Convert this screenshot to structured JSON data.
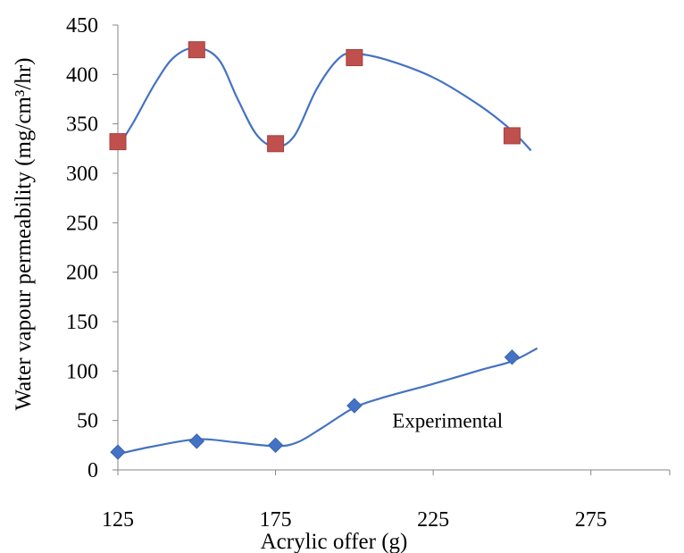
{
  "chart_data": {
    "type": "scatter",
    "title": "",
    "xlabel": "Acrylic offer (g)",
    "ylabel": "Water vapour permeability (mg/cm³/hr)",
    "xlim": [
      125,
      300
    ],
    "ylim": [
      0,
      450
    ],
    "x_ticks": [
      "125",
      "175",
      "225",
      "275"
    ],
    "y_ticks": [
      "0",
      "50",
      "100",
      "150",
      "200",
      "250",
      "300",
      "350",
      "400",
      "450"
    ],
    "grid": false,
    "legend": "none",
    "series": [
      {
        "marker": "diamond",
        "color": "#4472C4",
        "x": [
          125,
          150,
          175,
          200,
          250
        ],
        "y": [
          18,
          29,
          25,
          65,
          114
        ]
      },
      {
        "marker": "square",
        "color": "#C0504D",
        "x": [
          125,
          150,
          175,
          200,
          250
        ],
        "y": [
          332,
          425,
          330,
          417,
          338
        ]
      }
    ],
    "trendlines": [
      {
        "color": "#4472C4",
        "points": [
          [
            125,
            16
          ],
          [
            135,
            23
          ],
          [
            150,
            31
          ],
          [
            162,
            28
          ],
          [
            175,
            24
          ],
          [
            182,
            28
          ],
          [
            190,
            43
          ],
          [
            200,
            63
          ],
          [
            210,
            74
          ],
          [
            225,
            87
          ],
          [
            240,
            101
          ],
          [
            250,
            110
          ],
          [
            258,
            123
          ]
        ]
      },
      {
        "color": "#4472C4",
        "points": [
          [
            125,
            326
          ],
          [
            130,
            352
          ],
          [
            137,
            392
          ],
          [
            143,
            418
          ],
          [
            150,
            427
          ],
          [
            157,
            415
          ],
          [
            163,
            375
          ],
          [
            169,
            339
          ],
          [
            175,
            327
          ],
          [
            181,
            338
          ],
          [
            188,
            385
          ],
          [
            195,
            416
          ],
          [
            200,
            421
          ],
          [
            210,
            415
          ],
          [
            225,
            397
          ],
          [
            240,
            368
          ],
          [
            250,
            343
          ],
          [
            256,
            323
          ]
        ]
      }
    ],
    "annotations": [
      {
        "text": "Experimental",
        "x": 212,
        "y": 50
      }
    ]
  }
}
